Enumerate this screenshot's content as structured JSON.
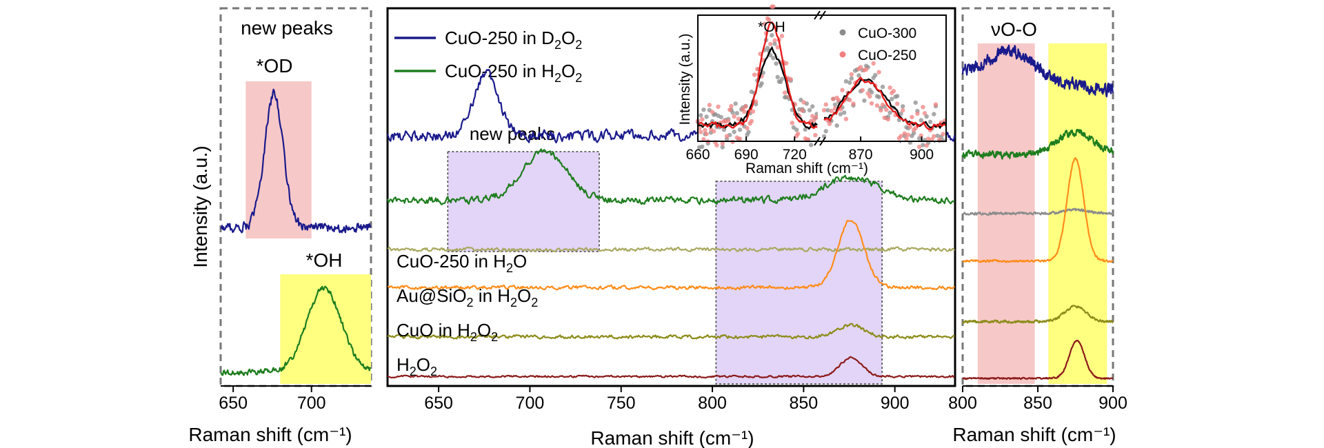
{
  "chart_data": [
    {
      "panel": "left",
      "type": "line",
      "title": "new peaks",
      "xlabel": "Raman shift (cm⁻¹)",
      "ylabel": "Intensity (a.u.)",
      "xlim": [
        642,
        738
      ],
      "xticks": [
        650,
        700
      ],
      "tick_labels": [
        "650",
        "700"
      ],
      "shaded": [
        {
          "label": "*OD",
          "range": [
            658,
            700
          ],
          "color": "#f7c8c8"
        },
        {
          "label": "*OH",
          "range": [
            680,
            738
          ],
          "color": "#ffff80"
        }
      ],
      "series": [
        {
          "color": "#1a1a8c",
          "baseline": 0.62,
          "noise": 0.045,
          "peaks": [
            {
              "center": 676,
              "width": 6,
              "height": 0.78
            }
          ]
        },
        {
          "color": "#1e7d1e",
          "baseline": 0.07,
          "noise": 0.035,
          "peaks": [
            {
              "center": 708,
              "width": 11,
              "height": 0.68
            }
          ]
        }
      ]
    },
    {
      "panel": "middle",
      "type": "line",
      "xlabel": "Raman shift (cm⁻¹)",
      "xlim": [
        622,
        933
      ],
      "xticks": [
        650,
        700,
        750,
        800,
        850,
        900
      ],
      "tick_labels": [
        "650",
        "700",
        "750",
        "800",
        "850",
        "900"
      ],
      "region_label": "new peaks",
      "shaded": [
        {
          "range": [
            655,
            738
          ],
          "color": "#e2d5f7"
        },
        {
          "range": [
            802,
            893
          ],
          "color": "#e2d5f7"
        }
      ],
      "legend": [
        {
          "text": "CuO-250 in D",
          "sub": "2",
          "text2": "O",
          "sub2": "2",
          "color": "#1a1a8c"
        },
        {
          "text": "CuO-250 in H",
          "sub": "2",
          "text2": "O",
          "sub2": "2",
          "color": "#1e7d1e"
        }
      ],
      "trace_labels": [
        {
          "text": "CuO-250 in H",
          "sub": "2",
          "text2": "O",
          "sub2": ""
        },
        {
          "text": "Au@SiO",
          "sub": "2",
          "text2": " in H",
          "sub2": "2",
          "text3": "O",
          "sub3": "2"
        },
        {
          "text": "CuO in H",
          "sub": "2",
          "text2": "O",
          "sub2": "2"
        },
        {
          "text": "H",
          "sub": "2",
          "text2": "O",
          "sub2": "2"
        }
      ],
      "series": [
        {
          "name": "CuO-250 in D2O2",
          "color": "#1a1a8c",
          "offset": 0.66,
          "noise": 0.022,
          "peaks": [
            {
              "center": 676,
              "width": 7,
              "height": 0.16
            },
            {
              "center": 830,
              "width": 15,
              "height": 0.04
            }
          ]
        },
        {
          "name": "CuO-250 in H2O2",
          "color": "#1e7d1e",
          "offset": 0.49,
          "noise": 0.014,
          "peaks": [
            {
              "center": 708,
              "width": 12,
              "height": 0.13
            },
            {
              "center": 876,
              "width": 14,
              "height": 0.06
            }
          ]
        },
        {
          "name": "CuO-250 in H2O",
          "color": "#a8a860",
          "offset": 0.36,
          "noise": 0.007,
          "peaks": []
        },
        {
          "name": "Au@SiO2 in H2O2",
          "color": "#ff8c1a",
          "offset": 0.26,
          "noise": 0.007,
          "peaks": [
            {
              "center": 876,
              "width": 7,
              "height": 0.18
            }
          ]
        },
        {
          "name": "CuO in H2O2",
          "color": "#8c8c1a",
          "offset": 0.13,
          "noise": 0.007,
          "peaks": [
            {
              "center": 876,
              "width": 7,
              "height": 0.03
            }
          ]
        },
        {
          "name": "H2O2",
          "color": "#8c1a1a",
          "offset": 0.025,
          "noise": 0.004,
          "peaks": [
            {
              "center": 876,
              "width": 6,
              "height": 0.05
            }
          ]
        }
      ]
    },
    {
      "panel": "inset",
      "type": "scatter",
      "xlabel": "Raman shift (cm⁻¹)",
      "ylabel": "Intensity (a.u.)",
      "annotation": "*OH",
      "segments": [
        {
          "xlim": [
            660,
            734
          ],
          "xticks": [
            660,
            690,
            720
          ],
          "tick_labels": [
            "660",
            "690",
            "720"
          ]
        },
        {
          "xlim": [
            852,
            912
          ],
          "xticks": [
            870,
            900
          ],
          "tick_labels": [
            "870",
            "900"
          ]
        }
      ],
      "legend": [
        {
          "text": "CuO-300",
          "color": "#8c8c8c"
        },
        {
          "text": "CuO-250",
          "color": "#f08080"
        }
      ],
      "series": [
        {
          "name": "CuO-300",
          "points_color": "#8c8c8c",
          "fit_color": "#000000",
          "peaks": [
            {
              "center": 706,
              "width": 8,
              "height": 0.62
            },
            {
              "center": 872,
              "width": 10,
              "height": 0.38
            }
          ]
        },
        {
          "name": "CuO-250",
          "points_color": "#f08080",
          "fit_color": "#e61a1a",
          "peaks": [
            {
              "center": 706,
              "width": 7,
              "height": 0.84
            },
            {
              "center": 872,
              "width": 9,
              "height": 0.38
            }
          ]
        }
      ]
    },
    {
      "panel": "right",
      "type": "line",
      "title": "νO-O",
      "xlabel": "Raman shift (cm⁻¹)",
      "xlim": [
        800,
        900
      ],
      "xticks": [
        800,
        850,
        900
      ],
      "tick_labels": [
        "800",
        "850",
        "900"
      ],
      "shaded": [
        {
          "range": [
            810,
            848
          ],
          "color": "#f7c8c8"
        },
        {
          "range": [
            857,
            896
          ],
          "color": "#ffff80"
        }
      ],
      "series": [
        {
          "color": "#1a1a8c",
          "offset": 0.83,
          "noise": 0.025,
          "slope": -0.05,
          "peaks": [
            {
              "center": 833,
              "width": 14,
              "height": 0.07
            }
          ]
        },
        {
          "color": "#1e7d1e",
          "offset": 0.61,
          "noise": 0.014,
          "peaks": [
            {
              "center": 875,
              "width": 12,
              "height": 0.06
            }
          ]
        },
        {
          "color": "#8c8c8c",
          "offset": 0.455,
          "noise": 0.005,
          "peaks": [
            {
              "center": 875,
              "width": 8,
              "height": 0.01
            }
          ]
        },
        {
          "color": "#ff8c1a",
          "offset": 0.33,
          "noise": 0.004,
          "peaks": [
            {
              "center": 875,
              "width": 5.5,
              "height": 0.27
            }
          ]
        },
        {
          "color": "#8c8c1a",
          "offset": 0.17,
          "noise": 0.005,
          "peaks": [
            {
              "center": 875,
              "width": 7,
              "height": 0.04
            }
          ]
        },
        {
          "color": "#8c1a1a",
          "offset": 0.02,
          "noise": 0.003,
          "peaks": [
            {
              "center": 876,
              "width": 5,
              "height": 0.1
            }
          ]
        }
      ]
    }
  ]
}
